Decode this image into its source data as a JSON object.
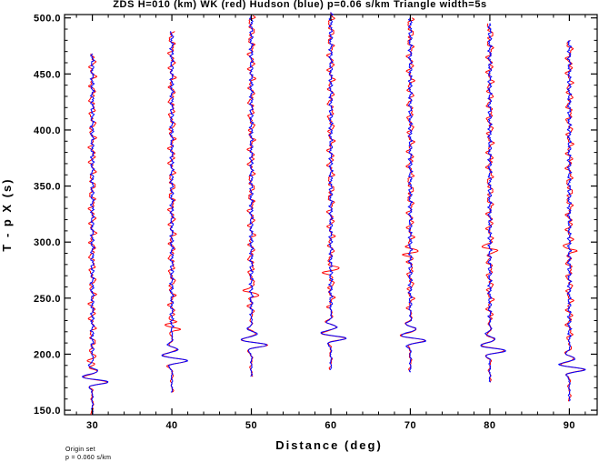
{
  "chart_data": {
    "type": "line",
    "title": "ZDS H=010 (km) WK (red) Hudson (blue) p=0.06 s/km Triangle width=5s",
    "xlabel": "Distance (deg)",
    "ylabel": "T - p X (s)",
    "xlim": [
      26.5,
      93.5
    ],
    "ylim": [
      146,
      503
    ],
    "x_ticks": [
      30,
      40,
      50,
      60,
      70,
      80,
      90
    ],
    "x_tick_labels": [
      "30",
      "40",
      "50",
      "60",
      "70",
      "80",
      "90"
    ],
    "y_ticks": [
      150,
      200,
      250,
      300,
      350,
      400,
      450,
      500
    ],
    "y_tick_labels": [
      "150.0",
      "200.0",
      "250.0",
      "300.0",
      "350.0",
      "400.0",
      "450.0",
      "500.0"
    ],
    "grid": false,
    "legend": "none",
    "series": [
      {
        "name": "WK",
        "color": "#ff0000"
      },
      {
        "name": "Hudson",
        "color": "#0000ff"
      }
    ],
    "traces": [
      {
        "distance": 30,
        "t_start": 146,
        "t_end": 468,
        "arrival": 172
      },
      {
        "distance": 40,
        "t_start": 166,
        "t_end": 488,
        "arrival": 191
      },
      {
        "distance": 50,
        "t_start": 180,
        "t_end": 502,
        "arrival": 205
      },
      {
        "distance": 60,
        "t_start": 186,
        "t_end": 505,
        "arrival": 211
      },
      {
        "distance": 70,
        "t_start": 184,
        "t_end": 500,
        "arrival": 209
      },
      {
        "distance": 80,
        "t_start": 175,
        "t_end": 495,
        "arrival": 200
      },
      {
        "distance": 90,
        "t_start": 158,
        "t_end": 480,
        "arrival": 183
      }
    ],
    "annotations": [
      "Origin set",
      "p = 0.060 s/km"
    ]
  },
  "colors": {
    "axis": "#000000",
    "red_trace": "#ff0000",
    "blue_trace": "#0000ff"
  }
}
